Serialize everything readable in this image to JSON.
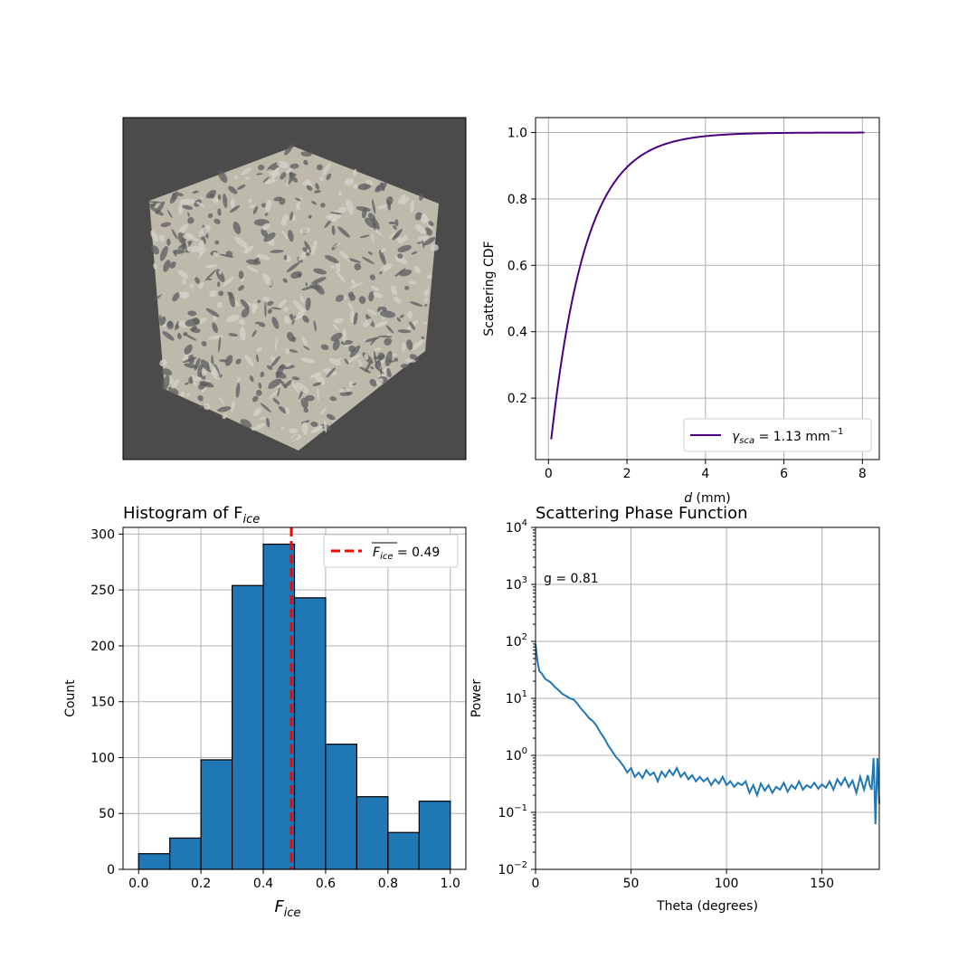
{
  "chart_data": [
    {
      "type": "image",
      "description_label": "ice microstructure volume render",
      "colors": {
        "background": "#4b4b4b",
        "surface": "#bdb9ab",
        "shadow": "#5d5d61"
      }
    },
    {
      "type": "line",
      "title": "",
      "xlabel_main": "d",
      "xlabel_unit": " (mm)",
      "ylabel": "Scattering CDF",
      "xlim": [
        -0.33,
        8.43
      ],
      "ylim": [
        0.015,
        1.045
      ],
      "xticks": [
        0,
        2,
        4,
        6,
        8
      ],
      "yticks": [
        0.2,
        0.4,
        0.6,
        0.8,
        1.0
      ],
      "grid": true,
      "gamma": 1.13,
      "x_start": 0.07,
      "x_end": 8.05,
      "series": [
        {
          "legend_symbol": "γ",
          "legend_sub": "sca",
          "legend_text": " = 1.13 mm",
          "legend_sup": "−1",
          "color": "#4b0082"
        }
      ],
      "legend_position": "lower-right"
    },
    {
      "type": "bar",
      "title_main": "Histogram of F",
      "title_sub": "ice",
      "xlabel_main": "F",
      "xlabel_sub": "ice",
      "ylabel": "Count",
      "xlim": [
        -0.05,
        1.05
      ],
      "ylim": [
        0,
        306
      ],
      "xticks": [
        0.0,
        0.2,
        0.4,
        0.6,
        0.8,
        1.0
      ],
      "yticks": [
        0,
        50,
        100,
        150,
        200,
        250,
        300
      ],
      "grid": true,
      "bin_edges": [
        0.0,
        0.1,
        0.2,
        0.3,
        0.4,
        0.5,
        0.6,
        0.7,
        0.8,
        0.9,
        1.0
      ],
      "values": [
        14,
        28,
        98,
        254,
        291,
        243,
        112,
        65,
        33,
        61
      ],
      "bar_color": "#1f77b4",
      "mean": 0.49,
      "mean_color": "#ff0000",
      "legend_main": "F",
      "legend_sub": "ice",
      "legend_value": " = 0.49",
      "legend_position": "upper-right"
    },
    {
      "type": "line",
      "title": "Scattering Phase Function",
      "xlabel": "Theta (degrees)",
      "ylabel": "Power",
      "xlim": [
        0,
        180
      ],
      "ylim": [
        0.01,
        10000
      ],
      "yscale": "log",
      "xticks": [
        0,
        50,
        100,
        150
      ],
      "yticks_exp": [
        -2,
        -1,
        0,
        1,
        2,
        3,
        4
      ],
      "grid": true,
      "annotation": "g = 0.81",
      "color": "#1f77b4",
      "x": [
        0,
        1,
        2,
        3,
        4,
        5,
        6,
        8,
        10,
        12,
        14,
        16,
        18,
        20,
        22,
        24,
        26,
        28,
        30,
        32,
        34,
        36,
        38,
        40,
        42,
        44,
        46,
        48,
        50,
        52,
        54,
        56,
        58,
        60,
        62,
        64,
        66,
        68,
        70,
        72,
        74,
        76,
        78,
        80,
        82,
        84,
        86,
        88,
        90,
        92,
        94,
        96,
        98,
        100,
        102,
        104,
        106,
        108,
        110,
        112,
        114,
        116,
        118,
        120,
        122,
        124,
        126,
        128,
        130,
        132,
        134,
        136,
        138,
        140,
        142,
        144,
        146,
        148,
        150,
        152,
        154,
        156,
        158,
        160,
        162,
        164,
        166,
        168,
        170,
        172,
        174,
        175,
        176,
        177,
        178,
        179,
        180
      ],
      "y": [
        90,
        45,
        30,
        28,
        25,
        22,
        21,
        19,
        16,
        14,
        12,
        11,
        10,
        9.5,
        8,
        6.5,
        5.5,
        4.5,
        4,
        3.3,
        2.5,
        2,
        1.5,
        1.2,
        0.95,
        0.8,
        0.65,
        0.5,
        0.6,
        0.42,
        0.5,
        0.4,
        0.55,
        0.45,
        0.5,
        0.35,
        0.52,
        0.42,
        0.55,
        0.45,
        0.6,
        0.42,
        0.5,
        0.38,
        0.45,
        0.35,
        0.42,
        0.35,
        0.4,
        0.3,
        0.38,
        0.32,
        0.42,
        0.3,
        0.35,
        0.28,
        0.33,
        0.3,
        0.35,
        0.22,
        0.3,
        0.2,
        0.32,
        0.24,
        0.3,
        0.22,
        0.28,
        0.25,
        0.33,
        0.23,
        0.3,
        0.26,
        0.35,
        0.25,
        0.3,
        0.27,
        0.33,
        0.26,
        0.31,
        0.27,
        0.35,
        0.25,
        0.38,
        0.3,
        0.4,
        0.28,
        0.36,
        0.22,
        0.42,
        0.25,
        0.45,
        0.3,
        0.25,
        0.9,
        0.062,
        0.9,
        0.14
      ]
    }
  ]
}
